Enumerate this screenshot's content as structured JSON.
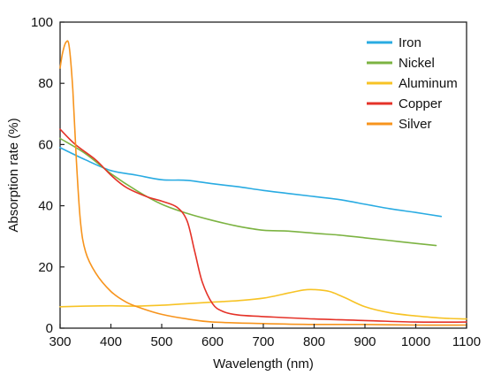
{
  "chart_data": {
    "type": "line",
    "title": "",
    "xlabel": "Wavelength (nm)",
    "ylabel": "Absorption rate (%)",
    "xlim": [
      300,
      1100
    ],
    "ylim": [
      0,
      100
    ],
    "x_ticks": [
      "300",
      "400",
      "500",
      "600",
      "700",
      "800",
      "900",
      "1000",
      "1100"
    ],
    "y_ticks": [
      "0",
      "20",
      "40",
      "60",
      "80",
      "100"
    ],
    "grid": false,
    "legend_position": "top-right",
    "series": [
      {
        "name": "Iron",
        "color": "#29ABE2",
        "points": [
          [
            300,
            59
          ],
          [
            350,
            55
          ],
          [
            400,
            51.5
          ],
          [
            450,
            50
          ],
          [
            500,
            48.5
          ],
          [
            550,
            48.3
          ],
          [
            600,
            47.2
          ],
          [
            650,
            46.2
          ],
          [
            700,
            45
          ],
          [
            750,
            44
          ],
          [
            800,
            43
          ],
          [
            850,
            42
          ],
          [
            900,
            40.5
          ],
          [
            950,
            39
          ],
          [
            1000,
            37.8
          ],
          [
            1050,
            36.5
          ]
        ]
      },
      {
        "name": "Nickel",
        "color": "#7CB342",
        "points": [
          [
            300,
            62
          ],
          [
            350,
            57
          ],
          [
            400,
            50.5
          ],
          [
            450,
            45
          ],
          [
            500,
            40.5
          ],
          [
            550,
            37.5
          ],
          [
            600,
            35.2
          ],
          [
            650,
            33.3
          ],
          [
            700,
            32
          ],
          [
            750,
            31.7
          ],
          [
            800,
            31
          ],
          [
            850,
            30.4
          ],
          [
            900,
            29.5
          ],
          [
            950,
            28.6
          ],
          [
            1000,
            27.7
          ],
          [
            1040,
            27
          ]
        ]
      },
      {
        "name": "Aluminum",
        "color": "#F7C325",
        "points": [
          [
            300,
            7
          ],
          [
            350,
            7.2
          ],
          [
            400,
            7.3
          ],
          [
            450,
            7.2
          ],
          [
            500,
            7.5
          ],
          [
            550,
            8
          ],
          [
            600,
            8.5
          ],
          [
            650,
            9
          ],
          [
            700,
            9.8
          ],
          [
            750,
            11.5
          ],
          [
            780,
            12.5
          ],
          [
            800,
            12.6
          ],
          [
            830,
            12
          ],
          [
            860,
            10
          ],
          [
            900,
            7
          ],
          [
            950,
            5
          ],
          [
            1000,
            4
          ],
          [
            1050,
            3.3
          ],
          [
            1100,
            3
          ]
        ]
      },
      {
        "name": "Copper",
        "color": "#E53228",
        "points": [
          [
            300,
            65
          ],
          [
            330,
            60
          ],
          [
            370,
            55
          ],
          [
            400,
            50
          ],
          [
            430,
            46
          ],
          [
            470,
            43
          ],
          [
            500,
            41.5
          ],
          [
            530,
            39.5
          ],
          [
            550,
            35
          ],
          [
            565,
            25
          ],
          [
            580,
            15
          ],
          [
            600,
            8
          ],
          [
            620,
            5.5
          ],
          [
            650,
            4.3
          ],
          [
            700,
            3.8
          ],
          [
            800,
            3
          ],
          [
            900,
            2.5
          ],
          [
            1000,
            2
          ],
          [
            1100,
            2
          ]
        ]
      },
      {
        "name": "Silver",
        "color": "#F7941D",
        "points": [
          [
            300,
            85
          ],
          [
            305,
            90
          ],
          [
            312,
            93.5
          ],
          [
            318,
            92
          ],
          [
            325,
            78
          ],
          [
            332,
            55
          ],
          [
            340,
            35
          ],
          [
            350,
            25
          ],
          [
            370,
            18
          ],
          [
            400,
            12
          ],
          [
            430,
            8.5
          ],
          [
            460,
            6.5
          ],
          [
            500,
            4.5
          ],
          [
            550,
            3
          ],
          [
            600,
            2
          ],
          [
            700,
            1.5
          ],
          [
            800,
            1.2
          ],
          [
            900,
            1.2
          ],
          [
            1000,
            1
          ],
          [
            1100,
            1
          ]
        ]
      }
    ]
  }
}
